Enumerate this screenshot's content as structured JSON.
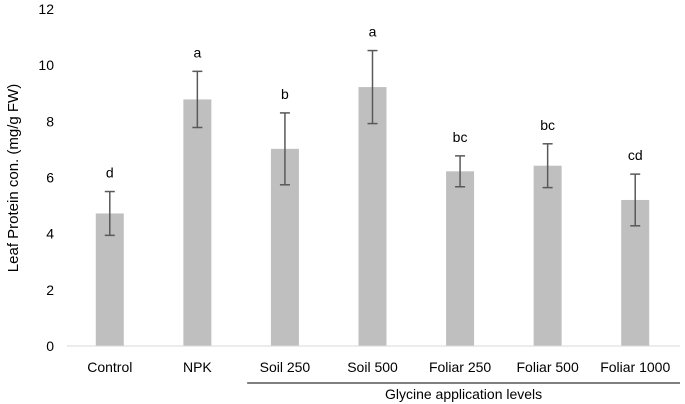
{
  "chart_data": {
    "type": "bar",
    "categories": [
      "Control",
      "NPK",
      "Soil 250",
      "Soil 500",
      "Foliar 250",
      "Foliar 500",
      "Foliar 1000"
    ],
    "values": [
      4.72,
      8.78,
      7.02,
      9.22,
      6.22,
      6.42,
      5.2
    ],
    "errors": [
      0.78,
      1.0,
      1.28,
      1.3,
      0.55,
      0.78,
      0.92
    ],
    "significance_letters": [
      "d",
      "a",
      "b",
      "a",
      "bc",
      "bc",
      "cd"
    ],
    "ylabel": "Leaf Protein con. (mg/g FW)",
    "group_label": "Glycine application levels",
    "group_categories": [
      "Soil 250",
      "Soil 500",
      "Foliar 250",
      "Foliar 500",
      "Foliar 1000"
    ],
    "ylim": [
      0,
      12
    ],
    "yticks": [
      0,
      2,
      4,
      6,
      8,
      10,
      12
    ],
    "grid": false,
    "legend": "none",
    "colors": {
      "bar": "#bfbfbf",
      "error_bar": "#595959",
      "axis": "#d9d9d9",
      "text": "#000000"
    }
  }
}
